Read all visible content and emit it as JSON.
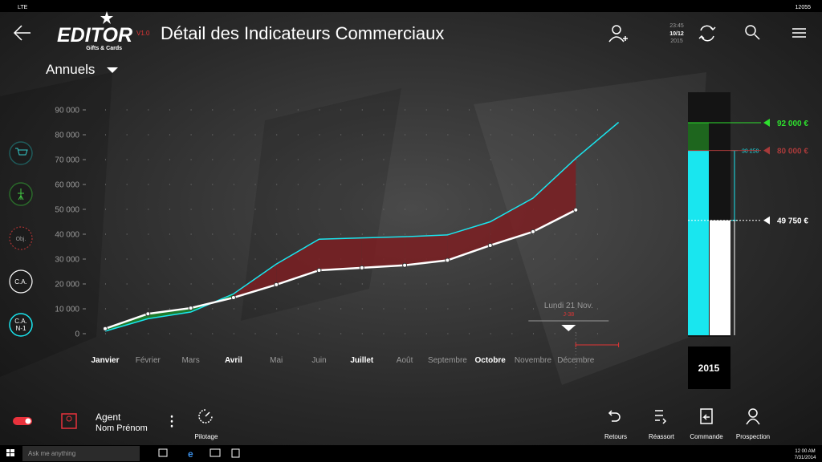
{
  "status_bar": {
    "network": "LTE",
    "clock": "12055"
  },
  "header": {
    "brand": "EDITOR",
    "brand_sub": "Gifts & Cards",
    "version": "V1.0",
    "title": "Détail des Indicateurs Commerciaux",
    "time": "23:45",
    "date": "10/12",
    "year": "2015"
  },
  "period": "Annuels",
  "side_buttons": [
    {
      "label": "Obj."
    },
    {
      "label": "C.A."
    },
    {
      "label": "C.A.",
      "sub": "N-1"
    }
  ],
  "chart_data": [
    {
      "type": "line",
      "categories": [
        "Janvier",
        "Février",
        "Mars",
        "Avril",
        "Mai",
        "Juin",
        "Juillet",
        "Août",
        "Septembre",
        "Octobre",
        "Novembre",
        "Décembre",
        null
      ],
      "series": [
        {
          "color": "#19e6ef",
          "values": [
            1000,
            6000,
            8700,
            16000,
            28000,
            38000,
            38500,
            39000,
            39700,
            45000,
            54500,
            70500,
            85000
          ]
        },
        {
          "color": "#ffffff",
          "values": [
            2000,
            8000,
            10300,
            14500,
            19700,
            25500,
            26500,
            27500,
            29500,
            35500,
            41000,
            49750,
            null
          ]
        }
      ],
      "ylim": [
        0,
        90000
      ],
      "yticks": [
        0,
        {
          "value": 10000,
          "label": "10 000"
        },
        {
          "value": 20000,
          "label": "20 000"
        },
        {
          "value": 30000,
          "label": "30 000"
        },
        {
          "value": 40000,
          "label": "40 000"
        },
        {
          "value": 50000,
          "label": "50 000"
        },
        {
          "value": 60000,
          "label": "60 000"
        },
        {
          "value": 70000,
          "label": "70 000"
        },
        {
          "value": 80000,
          "label": "80 000"
        },
        {
          "value": 90000,
          "label": "90 000"
        }
      ],
      "grid": true,
      "fill_colors": [
        "#1c8a2c",
        "#7b1f22"
      ],
      "annotation": {
        "text": "Lundi 21 Nov.",
        "sub": "J-38"
      }
    },
    {
      "type": "gauge",
      "category": "2015",
      "values": [
        92000,
        80000,
        49750,
        30250
      ],
      "value_labels": [
        "92 000 €",
        "80 000 €",
        "49 750 €",
        "30 250"
      ],
      "colors": [
        "#2ee02e",
        "#a83a3a",
        "#ffffff",
        "#19e6ef"
      ]
    }
  ],
  "footer": {
    "agent": "Agent",
    "agent_name": "Nom Prénom",
    "pilotage": "Pilotage",
    "actions": [
      "Retours",
      "Réassort",
      "Commande",
      "Prospection"
    ]
  },
  "taskbar": {
    "search": "Ask me anything",
    "time": "12 00 AM",
    "date": "7/31/2014"
  }
}
